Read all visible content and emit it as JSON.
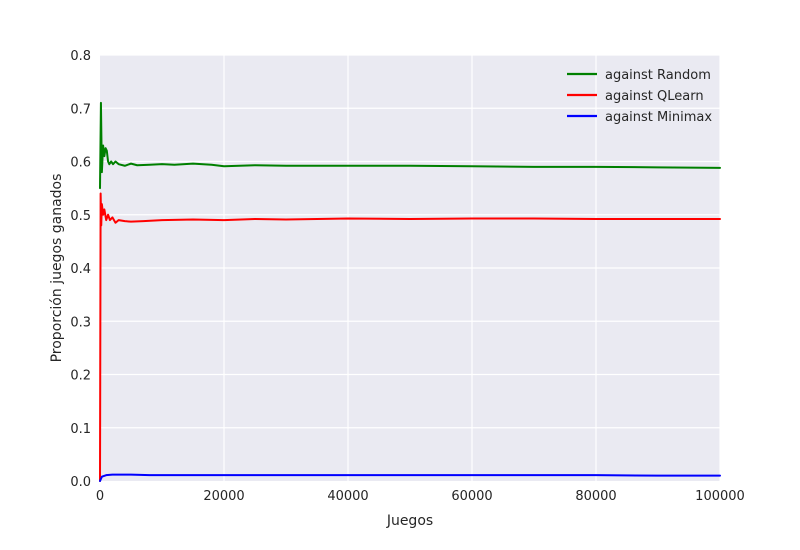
{
  "chart_data": {
    "type": "line",
    "title": "",
    "xlabel": "Juegos",
    "ylabel": "Proporción juegos ganados",
    "xlim": [
      0,
      100000
    ],
    "ylim": [
      0.0,
      0.8
    ],
    "xticks": [
      0,
      20000,
      40000,
      60000,
      80000,
      100000
    ],
    "xtick_labels": [
      "0",
      "20000",
      "40000",
      "60000",
      "80000",
      "100000"
    ],
    "yticks": [
      0.0,
      0.1,
      0.2,
      0.3,
      0.4,
      0.5,
      0.6,
      0.7,
      0.8
    ],
    "ytick_labels": [
      "0.0",
      "0.1",
      "0.2",
      "0.3",
      "0.4",
      "0.5",
      "0.6",
      "0.7",
      "0.8"
    ],
    "grid": true,
    "legend_position": "top-right",
    "series": [
      {
        "name": "against Random",
        "color": "#008000",
        "x": [
          0,
          150,
          300,
          500,
          700,
          900,
          1100,
          1300,
          1500,
          1800,
          2100,
          2500,
          3000,
          4000,
          5000,
          6000,
          8000,
          10000,
          12000,
          15000,
          18000,
          20000,
          25000,
          30000,
          40000,
          50000,
          60000,
          70000,
          80000,
          90000,
          100000
        ],
        "values": [
          0.55,
          0.71,
          0.58,
          0.63,
          0.61,
          0.625,
          0.62,
          0.6,
          0.595,
          0.6,
          0.595,
          0.6,
          0.595,
          0.592,
          0.596,
          0.593,
          0.594,
          0.595,
          0.594,
          0.596,
          0.594,
          0.591,
          0.593,
          0.592,
          0.592,
          0.592,
          0.591,
          0.59,
          0.59,
          0.589,
          0.588
        ]
      },
      {
        "name": "against QLearn",
        "color": "#ff0000",
        "x": [
          0,
          100,
          200,
          300,
          500,
          700,
          1000,
          1300,
          1600,
          2000,
          2500,
          3000,
          4000,
          5000,
          7000,
          10000,
          15000,
          20000,
          25000,
          30000,
          40000,
          50000,
          60000,
          70000,
          80000,
          90000,
          100000
        ],
        "values": [
          0.0,
          0.54,
          0.48,
          0.52,
          0.5,
          0.51,
          0.49,
          0.5,
          0.49,
          0.495,
          0.485,
          0.49,
          0.488,
          0.487,
          0.488,
          0.49,
          0.491,
          0.49,
          0.492,
          0.491,
          0.493,
          0.492,
          0.493,
          0.493,
          0.492,
          0.492,
          0.492
        ]
      },
      {
        "name": "against Minimax",
        "color": "#0000ff",
        "x": [
          0,
          300,
          1000,
          2000,
          5000,
          8000,
          10000,
          20000,
          30000,
          40000,
          50000,
          60000,
          70000,
          80000,
          90000,
          100000
        ],
        "values": [
          0.0,
          0.008,
          0.011,
          0.012,
          0.012,
          0.011,
          0.011,
          0.011,
          0.011,
          0.011,
          0.011,
          0.011,
          0.011,
          0.011,
          0.01,
          0.01
        ]
      }
    ]
  },
  "colors": {
    "plot_background": "#eaeaf2",
    "grid": "#ffffff",
    "text": "#262626"
  }
}
